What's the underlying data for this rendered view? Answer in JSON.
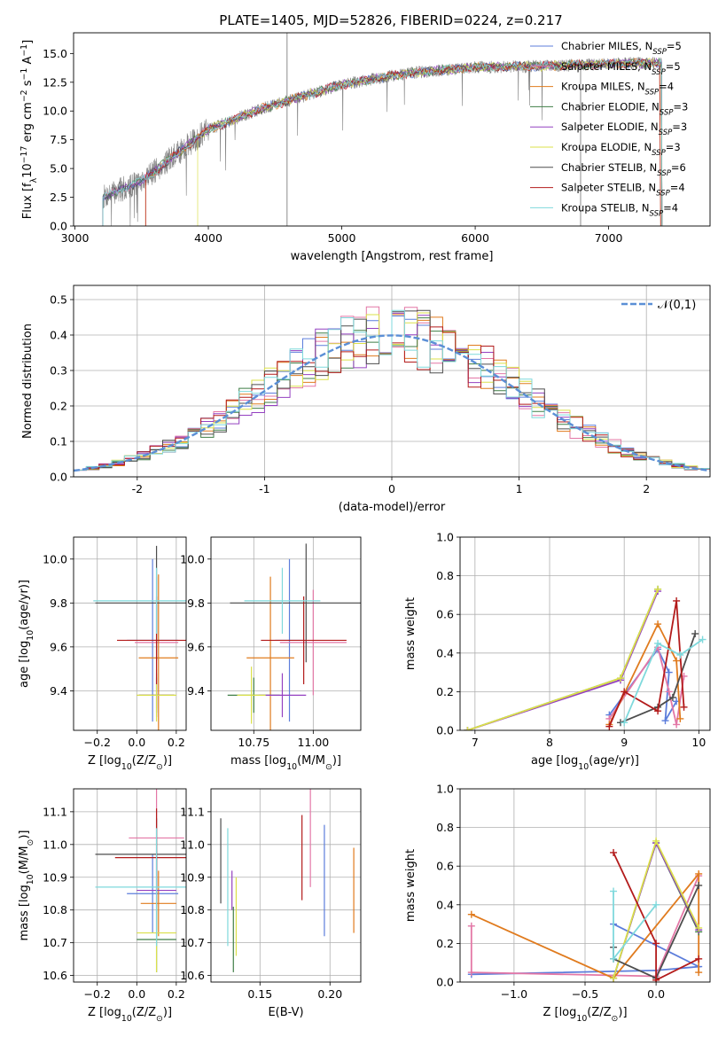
{
  "chart_data": {
    "title": "PLATE=1405, MJD=52826, FIBERID=0224, z=0.217",
    "models": [
      {
        "name": "Chabrier MILES",
        "nssp": "5",
        "color": "#5c7ddb"
      },
      {
        "name": "Salpeter MILES",
        "nssp": "5",
        "color": "#e377a6"
      },
      {
        "name": "Kroupa MILES",
        "nssp": "4",
        "color": "#e07b1e"
      },
      {
        "name": "Chabrier ELODIE",
        "nssp": "3",
        "color": "#3f7e46"
      },
      {
        "name": "Salpeter ELODIE",
        "nssp": "3",
        "color": "#9440c0"
      },
      {
        "name": "Kroupa ELODIE",
        "nssp": "3",
        "color": "#dbe04a"
      },
      {
        "name": "Chabrier STELIB",
        "nssp": "6",
        "color": "#4d4d4d"
      },
      {
        "name": "Salpeter STELIB",
        "nssp": "4",
        "color": "#b31b1b"
      },
      {
        "name": "Kroupa STELIB",
        "nssp": "4",
        "color": "#7fd9dc"
      }
    ],
    "panels": [
      {
        "id": "spectrum",
        "type": "line",
        "xlabel": "wavelength [Angstrom, rest frame]",
        "ylabel": "Flux [f$_\\lambda$10$^{-17}$ erg cm$^{-2}$ s$^{-1}$ A$^{-1}$]",
        "ylabel_parts": [
          "Flux [f",
          "λ",
          "10",
          "−17",
          " erg cm",
          "−2",
          " s",
          "−1",
          " A",
          "−1",
          "]"
        ],
        "xlim": [
          2990,
          7760
        ],
        "ylim": [
          0,
          16.8
        ],
        "xticks": [
          3000,
          4000,
          5000,
          6000,
          7000
        ],
        "yticks": [
          0.0,
          2.5,
          5.0,
          7.5,
          10.0,
          12.5,
          15.0
        ],
        "grid": false,
        "legend": "upper right",
        "legend_nssp_label": "N",
        "legend_nssp_sub": "SSP",
        "data_color": "#808080",
        "data_range": [
          3210,
          7400
        ],
        "continuum": {
          "x": [
            3210,
            3500,
            4000,
            4400,
            5000,
            5500,
            6000,
            6500,
            7000,
            7400
          ],
          "y": [
            2.5,
            3.9,
            8.4,
            10.2,
            12.3,
            13.3,
            13.8,
            13.9,
            14.1,
            14.2
          ]
        },
        "model_starts": [
          3210,
          3210,
          3530,
          3210,
          3210,
          3920,
          3210,
          3530,
          3210
        ],
        "model_ends": [
          7400,
          7400,
          7390,
          7400,
          7400,
          7400,
          7400,
          7390,
          7400
        ],
        "spikes": [
          {
            "x": 4590,
            "y": 16.8
          },
          {
            "x": 6790,
            "y": 0
          }
        ]
      },
      {
        "id": "residual_hist",
        "type": "histogram",
        "xlabel": "(data-model)/error",
        "ylabel": "Normed distribution",
        "xlim": [
          -2.5,
          2.5
        ],
        "ylim": [
          0,
          0.54
        ],
        "xticks": [
          -2,
          -1,
          0,
          1,
          2
        ],
        "yticks": [
          0.0,
          0.1,
          0.2,
          0.3,
          0.4,
          0.5
        ],
        "grid": true,
        "legend": "upper right",
        "reference_label": "𝒩(0,1)",
        "reference_color": "#5b8fd6",
        "bin_width": 0.1
      },
      {
        "id": "age_vs_Z",
        "type": "errorbar",
        "xlabel": "Z [log$_{10}$(Z/Z$_\\odot$)]",
        "xlabel_parts": [
          "Z [log",
          "10",
          "(Z/Z",
          "⊙",
          ")]"
        ],
        "ylabel": "age  [log$_{10}$(age/yr)]",
        "ylabel_parts": [
          "age  [log",
          "10",
          "(age/yr)]"
        ],
        "xlim": [
          -0.32,
          0.25
        ],
        "ylim": [
          9.22,
          10.1
        ],
        "xticks": [
          -0.2,
          0.0,
          0.2
        ],
        "yticks": [
          9.4,
          9.6,
          9.8,
          10.0
        ],
        "grid": true,
        "points": [
          {
            "x": 0.08,
            "y": 9.63,
            "xerr": 0.13,
            "yerr": 0.37
          },
          {
            "x": 0.1,
            "y": 9.62,
            "xerr": 0.11,
            "yerr": 0.3
          },
          {
            "x": 0.11,
            "y": 9.55,
            "xerr": 0.1,
            "yerr": 0.38
          },
          {
            "x": 0.1,
            "y": 9.38,
            "xerr": 0.09,
            "yerr": 0.08
          },
          {
            "x": 0.1,
            "y": 9.38,
            "xerr": 0.09,
            "yerr": 0.1
          },
          {
            "x": 0.1,
            "y": 9.38,
            "xerr": 0.1,
            "yerr": 0.12
          },
          {
            "x": 0.1,
            "y": 9.8,
            "xerr": 0.31,
            "yerr": 0.26
          },
          {
            "x": 0.1,
            "y": 9.63,
            "xerr": 0.2,
            "yerr": 0.2
          },
          {
            "x": 0.1,
            "y": 9.81,
            "xerr": 0.32,
            "yerr": 0.15
          }
        ]
      },
      {
        "id": "age_vs_mass",
        "type": "errorbar",
        "xlabel": "mass [log$_{10}$(M/M$_\\odot$)]",
        "xlabel_parts": [
          "mass [log",
          "10",
          "(M/M",
          "⊙",
          ")]"
        ],
        "ylabel": "",
        "xlim": [
          10.57,
          11.2
        ],
        "ylim": [
          9.22,
          10.1
        ],
        "xticks": [
          10.75,
          11.0
        ],
        "yticks": [
          9.4,
          9.6,
          9.8,
          10.0
        ],
        "grid": true,
        "points": [
          {
            "x": 10.9,
            "y": 9.63,
            "xerr": 0.06,
            "yerr": 0.37
          },
          {
            "x": 11.0,
            "y": 9.62,
            "xerr": 0.14,
            "yerr": 0.24
          },
          {
            "x": 10.82,
            "y": 9.55,
            "xerr": 0.1,
            "yerr": 0.37
          },
          {
            "x": 10.75,
            "y": 9.38,
            "xerr": 0.11,
            "yerr": 0.08
          },
          {
            "x": 10.87,
            "y": 9.38,
            "xerr": 0.1,
            "yerr": 0.1
          },
          {
            "x": 10.74,
            "y": 9.38,
            "xerr": 0.06,
            "yerr": 0.13
          },
          {
            "x": 10.97,
            "y": 9.8,
            "xerr": 0.32,
            "yerr": 0.27
          },
          {
            "x": 10.96,
            "y": 9.63,
            "xerr": 0.18,
            "yerr": 0.2
          },
          {
            "x": 10.87,
            "y": 9.81,
            "xerr": 0.16,
            "yerr": 0.15
          }
        ]
      },
      {
        "id": "weight_vs_age",
        "type": "line",
        "xlabel": "age  [log$_{10}$(age/yr)]",
        "xlabel_parts": [
          "age  [log",
          "10",
          "(age/yr)]"
        ],
        "ylabel": "mass weight",
        "xlim": [
          6.8,
          10.15
        ],
        "ylim": [
          0,
          1.0
        ],
        "xticks": [
          7,
          8,
          9,
          10
        ],
        "yticks": [
          0.0,
          0.2,
          0.4,
          0.6,
          0.8,
          1.0
        ],
        "grid": true,
        "series": [
          {
            "x": [
              8.8,
              9.45,
              9.6,
              9.55,
              9.7
            ],
            "y": [
              0.08,
              0.42,
              0.3,
              0.05,
              0.15
            ]
          },
          {
            "x": [
              8.8,
              9.45,
              9.6,
              9.7,
              9.8
            ],
            "y": [
              0.06,
              0.43,
              0.2,
              0.03,
              0.28
            ]
          },
          {
            "x": [
              8.8,
              9.45,
              9.7,
              9.75
            ],
            "y": [
              0.03,
              0.55,
              0.36,
              0.06
            ]
          },
          {
            "x": [
              6.9,
              8.95,
              9.45
            ],
            "y": [
              0.0,
              0.27,
              0.73
            ]
          },
          {
            "x": [
              6.9,
              8.95,
              9.45
            ],
            "y": [
              0.0,
              0.26,
              0.72
            ]
          },
          {
            "x": [
              6.9,
              8.95,
              9.45
            ],
            "y": [
              0.0,
              0.27,
              0.73
            ]
          },
          {
            "x": [
              8.95,
              9.45,
              9.65,
              9.95
            ],
            "y": [
              0.04,
              0.12,
              0.17,
              0.5
            ]
          },
          {
            "x": [
              8.8,
              9.0,
              9.45,
              9.7,
              9.8
            ],
            "y": [
              0.02,
              0.2,
              0.1,
              0.67,
              0.12
            ]
          },
          {
            "x": [
              9.0,
              9.45,
              9.75,
              10.05
            ],
            "y": [
              0.04,
              0.45,
              0.39,
              0.47
            ]
          }
        ]
      },
      {
        "id": "mass_vs_Z",
        "type": "errorbar",
        "xlabel": "Z [log$_{10}$(Z/Z$_\\odot$)]",
        "xlabel_parts": [
          "Z [log",
          "10",
          "(Z/Z",
          "⊙",
          ")]"
        ],
        "ylabel": "mass [log$_{10}$(M/M$_\\odot$)]",
        "ylabel_parts": [
          "mass [log",
          "10",
          "(M/M",
          "⊙",
          ")]"
        ],
        "xlim": [
          -0.32,
          0.25
        ],
        "ylim": [
          10.58,
          11.17
        ],
        "xticks": [
          -0.2,
          0.0,
          0.2
        ],
        "yticks": [
          10.6,
          10.7,
          10.8,
          10.9,
          11.0,
          11.1
        ],
        "grid": true,
        "points": [
          {
            "x": 0.08,
            "y": 10.85,
            "xerr": 0.13,
            "yerr": 0.12
          },
          {
            "x": 0.1,
            "y": 11.02,
            "xerr": 0.14,
            "yerr": 0.15
          },
          {
            "x": 0.11,
            "y": 10.82,
            "xerr": 0.09,
            "yerr": 0.1
          },
          {
            "x": 0.1,
            "y": 10.71,
            "xerr": 0.1,
            "yerr": 0.1
          },
          {
            "x": 0.1,
            "y": 10.86,
            "xerr": 0.1,
            "yerr": 0.12
          },
          {
            "x": 0.1,
            "y": 10.73,
            "xerr": 0.1,
            "yerr": 0.12
          },
          {
            "x": 0.1,
            "y": 10.97,
            "xerr": 0.31,
            "yerr": 0.11
          },
          {
            "x": 0.1,
            "y": 10.96,
            "xerr": 0.21,
            "yerr": 0.15
          },
          {
            "x": 0.1,
            "y": 10.87,
            "xerr": 0.31,
            "yerr": 0.18
          }
        ]
      },
      {
        "id": "mass_vs_ebv",
        "type": "errorbar",
        "xlabel": "E(B-V)",
        "ylabel": "",
        "xlim": [
          0.115,
          0.222
        ],
        "ylim": [
          10.58,
          11.17
        ],
        "xticks": [
          0.15,
          0.2
        ],
        "yticks": [
          10.6,
          10.7,
          10.8,
          10.9,
          11.0,
          11.1
        ],
        "grid": true,
        "points": [
          {
            "x": 0.196,
            "y": 10.89,
            "yerr": 0.17
          },
          {
            "x": 0.186,
            "y": 11.02,
            "yerr": 0.15
          },
          {
            "x": 0.217,
            "y": 10.86,
            "yerr": 0.13
          },
          {
            "x": 0.131,
            "y": 10.71,
            "yerr": 0.1
          },
          {
            "x": 0.13,
            "y": 10.86,
            "yerr": 0.06
          },
          {
            "x": 0.133,
            "y": 10.78,
            "yerr": 0.12
          },
          {
            "x": 0.122,
            "y": 10.95,
            "yerr": 0.13
          },
          {
            "x": 0.18,
            "y": 10.96,
            "yerr": 0.13
          },
          {
            "x": 0.127,
            "y": 10.87,
            "yerr": 0.18
          }
        ]
      },
      {
        "id": "weight_vs_Z",
        "type": "line",
        "xlabel": "Z [log$_{10}$(Z/Z$_\\odot$)]",
        "xlabel_parts": [
          "Z [log",
          "10",
          "(Z/Z",
          "⊙",
          ")]"
        ],
        "ylabel": "mass weight",
        "xlim": [
          -1.38,
          0.38
        ],
        "ylim": [
          0,
          1.0
        ],
        "xticks": [
          -1.0,
          -0.5,
          0.0
        ],
        "yticks": [
          0.0,
          0.2,
          0.4,
          0.6,
          0.8,
          1.0
        ],
        "grid": true,
        "series": [
          {
            "x": [
              -1.3,
              0.0,
              0.3,
              -0.3
            ],
            "y": [
              0.04,
              0.06,
              0.08,
              0.3
            ]
          },
          {
            "x": [
              -1.3,
              -1.3,
              0.0,
              0.3
            ],
            "y": [
              0.29,
              0.05,
              0.03,
              0.55
            ]
          },
          {
            "x": [
              -1.3,
              -0.3,
              0.3,
              0.3
            ],
            "y": [
              0.35,
              0.02,
              0.56,
              0.05
            ]
          },
          {
            "x": [
              -0.3,
              0.0,
              0.3
            ],
            "y": [
              0.02,
              0.72,
              0.26
            ]
          },
          {
            "x": [
              -0.3,
              0.0,
              0.3
            ],
            "y": [
              0.02,
              0.72,
              0.27
            ]
          },
          {
            "x": [
              -0.3,
              0.0,
              0.3
            ],
            "y": [
              0.02,
              0.73,
              0.28
            ]
          },
          {
            "x": [
              -0.3,
              -0.3,
              0.0,
              0.3
            ],
            "y": [
              0.18,
              0.12,
              0.02,
              0.5
            ]
          },
          {
            "x": [
              -0.3,
              0.0,
              0.0,
              0.3
            ],
            "y": [
              0.67,
              0.2,
              0.01,
              0.12
            ]
          },
          {
            "x": [
              -0.3,
              -0.3,
              0.0
            ],
            "y": [
              0.47,
              0.12,
              0.4
            ]
          }
        ]
      }
    ]
  }
}
